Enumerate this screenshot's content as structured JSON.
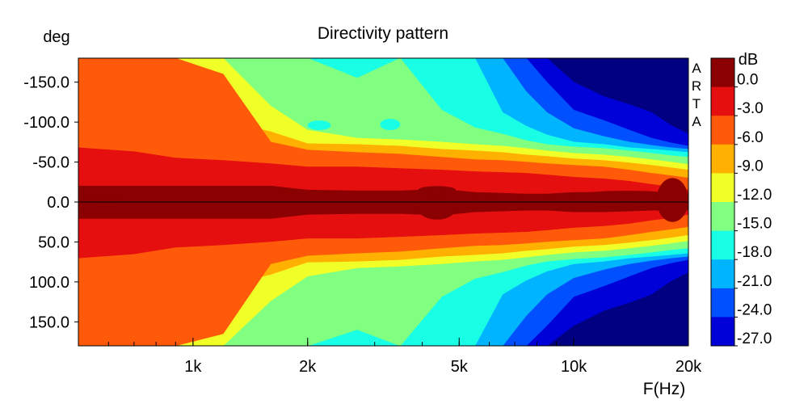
{
  "chart_data": {
    "type": "heatmap",
    "title": "Directivity pattern",
    "xlabel": "F(Hz)",
    "ylabel": "deg",
    "xscale": "log",
    "xlim": [
      500,
      20000
    ],
    "ylim": [
      -180,
      180
    ],
    "x_ticks": [
      {
        "value": 1000,
        "label": "1k"
      },
      {
        "value": 2000,
        "label": "2k"
      },
      {
        "value": 5000,
        "label": "5k"
      },
      {
        "value": 10000,
        "label": "10k"
      },
      {
        "value": 20000,
        "label": "20k"
      }
    ],
    "y_ticks": [
      {
        "value": -150,
        "label": "-150.0"
      },
      {
        "value": -100,
        "label": "-100.0"
      },
      {
        "value": -50,
        "label": "-50.0"
      },
      {
        "value": 0,
        "label": "0.0"
      },
      {
        "value": 50,
        "label": "50.0"
      },
      {
        "value": 100,
        "label": "100.0"
      },
      {
        "value": 150,
        "label": "150.0"
      }
    ],
    "watermark": [
      "A",
      "R",
      "T",
      "A"
    ],
    "colorbar": {
      "unit": "dB",
      "levels": [
        {
          "label": "0.0",
          "color": "#8b0000"
        },
        {
          "label": "-3.0",
          "color": "#e60f0f"
        },
        {
          "label": "-6.0",
          "color": "#ff5a0a"
        },
        {
          "label": "-9.0",
          "color": "#ffb000"
        },
        {
          "label": "-12.0",
          "color": "#f0ff28"
        },
        {
          "label": "-15.0",
          "color": "#80ff80"
        },
        {
          "label": "-18.0",
          "color": "#19ffe6"
        },
        {
          "label": "-21.0",
          "color": "#00b4ff"
        },
        {
          "label": "-24.0",
          "color": "#0050ff"
        },
        {
          "label": "-27.0",
          "color": "#0000d8"
        }
      ],
      "overflow_color": "#000080"
    },
    "contours": {
      "frequencies": [
        500,
        700,
        900,
        1200,
        1600,
        2000,
        2700,
        3500,
        4500,
        5500,
        6500,
        7500,
        8500,
        10000,
        12000,
        14000,
        16000,
        18000,
        20000
      ],
      "boundary_offsets_deg": [
        [
          20,
          20,
          20,
          20,
          20,
          15,
          14,
          14,
          16,
          12,
          11,
          10,
          10,
          12,
          12,
          11,
          10,
          10,
          10
        ],
        [
          68,
          63,
          55,
          52,
          48,
          44,
          44,
          42,
          40,
          38,
          37,
          36,
          34,
          31,
          29,
          26,
          22,
          19,
          15
        ],
        [
          180,
          180,
          180,
          160,
          75,
          65,
          62,
          60,
          56,
          53,
          52,
          50,
          48,
          46,
          44,
          40,
          36,
          33,
          30
        ],
        [
          180,
          180,
          120,
          102,
          88,
          73,
          72,
          70,
          66,
          64,
          62,
          59,
          57,
          54,
          52,
          49,
          46,
          43,
          40
        ],
        [
          180,
          180,
          180,
          180,
          120,
          90,
          80,
          78,
          75,
          72,
          70,
          67,
          64,
          61,
          59,
          56,
          53,
          50,
          47
        ],
        [
          180,
          180,
          180,
          180,
          180,
          180,
          155,
          180,
          115,
          93,
          85,
          77,
          72,
          69,
          67,
          64,
          61,
          58,
          56
        ],
        [
          180,
          180,
          180,
          180,
          180,
          180,
          180,
          180,
          180,
          180,
          112,
          95,
          84,
          75,
          72,
          68,
          66,
          64,
          62
        ],
        [
          180,
          180,
          180,
          180,
          180,
          180,
          180,
          180,
          180,
          180,
          180,
          138,
          112,
          92,
          82,
          75,
          71,
          68,
          66
        ],
        [
          180,
          180,
          180,
          180,
          180,
          180,
          180,
          180,
          180,
          180,
          180,
          180,
          150,
          115,
          102,
          90,
          80,
          74,
          70
        ],
        [
          180,
          180,
          180,
          180,
          180,
          180,
          180,
          180,
          180,
          180,
          180,
          180,
          180,
          150,
          132,
          122,
          112,
          96,
          85
        ]
      ],
      "hot_spots": [
        {
          "f_min": 3900,
          "f_max": 4900,
          "deg_min": -6,
          "deg_max": 22,
          "level": 0
        },
        {
          "f_min": 3900,
          "f_max": 4900,
          "deg_min": -20,
          "deg_max": -10,
          "level": 0
        },
        {
          "f_min": 520,
          "f_max": 680,
          "deg_min": -5,
          "deg_max": 2,
          "level": 0
        },
        {
          "f_min": 5400,
          "f_max": 6300,
          "deg_min": -4,
          "deg_max": 1,
          "level": 0
        },
        {
          "f_min": 9500,
          "f_max": 20000,
          "deg_min": -14,
          "deg_max": 2,
          "level": 0
        },
        {
          "f_min": 16500,
          "f_max": 20000,
          "deg_min": -30,
          "deg_max": 25,
          "level": 0
        },
        {
          "f_min": 2000,
          "f_max": 2300,
          "deg_min": -102,
          "deg_max": -90,
          "level": 6
        },
        {
          "f_min": 3100,
          "f_max": 3500,
          "deg_min": -104,
          "deg_max": -90,
          "level": 6
        }
      ]
    }
  }
}
